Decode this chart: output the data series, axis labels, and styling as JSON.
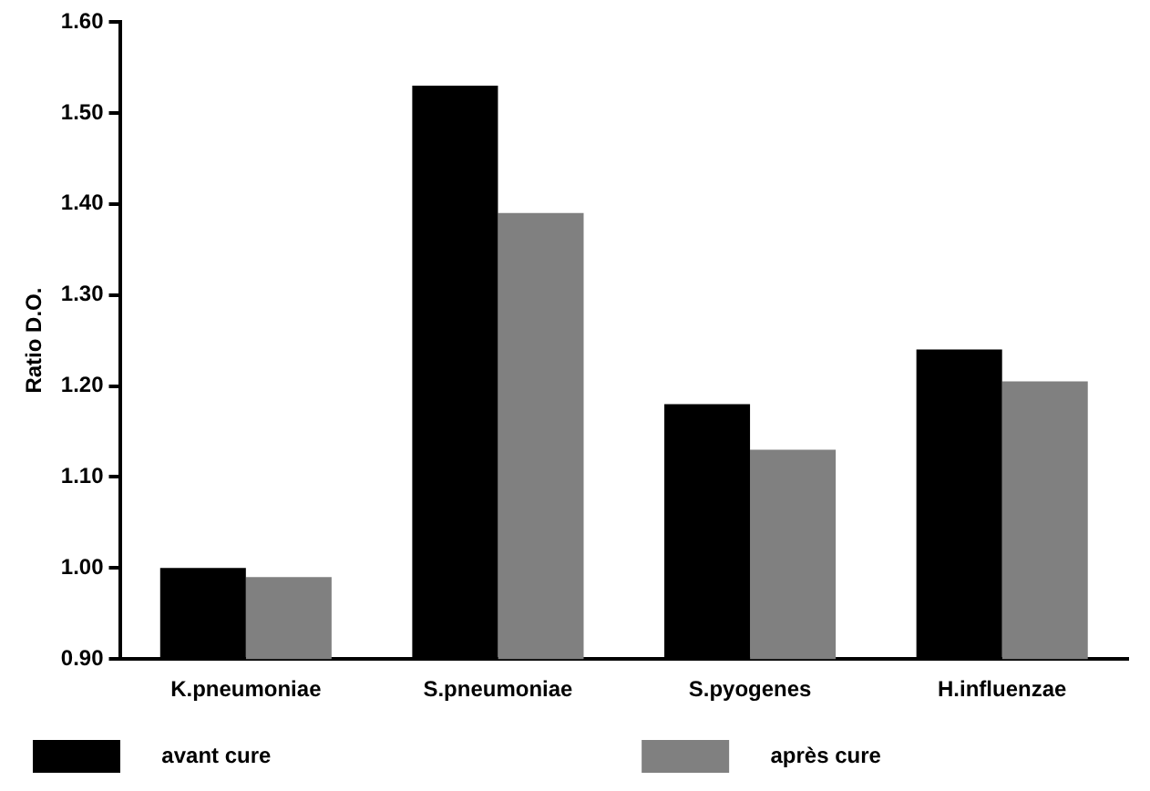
{
  "chart_data": {
    "type": "bar",
    "ylabel": "Ratio D.O.",
    "categories": [
      "K.pneumoniae",
      "S.pneumoniae",
      "S.pyogenes",
      "H.influenzae"
    ],
    "series": [
      {
        "name": "avant cure",
        "color": "#000000",
        "values": [
          1.0,
          1.53,
          1.18,
          1.24
        ]
      },
      {
        "name": "après cure",
        "color": "#808080",
        "values": [
          0.99,
          1.39,
          1.13,
          1.205
        ]
      }
    ],
    "ylim": [
      0.9,
      1.6
    ],
    "yticks": [
      {
        "value": 0.9,
        "label": "0.90"
      },
      {
        "value": 1.0,
        "label": "1.00"
      },
      {
        "value": 1.1,
        "label": "1.10"
      },
      {
        "value": 1.2,
        "label": "1.20"
      },
      {
        "value": 1.3,
        "label": "1.30"
      },
      {
        "value": 1.4,
        "label": "1.40"
      },
      {
        "value": 1.5,
        "label": "1.50"
      },
      {
        "value": 1.6,
        "label": "1.60"
      }
    ],
    "grid": false,
    "legend": "bottom"
  }
}
